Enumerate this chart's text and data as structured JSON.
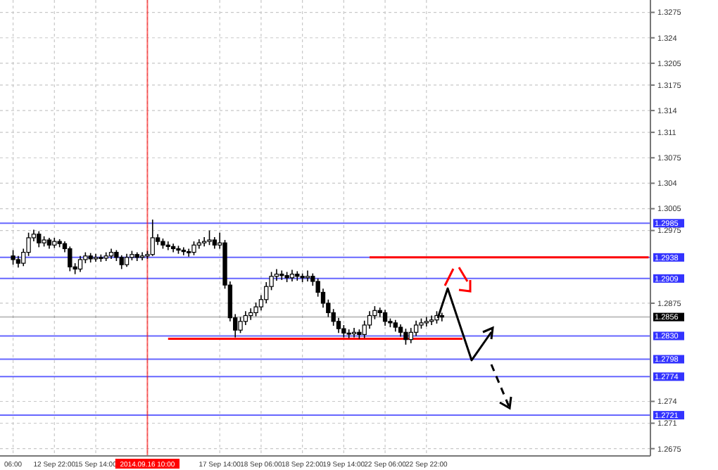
{
  "chart_data": {
    "type": "candlestick",
    "categories": [
      "06:00",
      null,
      null,
      null,
      null,
      null,
      null,
      null,
      "12 Sep 22:00",
      null,
      null,
      null,
      null,
      null,
      null,
      null,
      "15 Sep 14:00",
      null,
      null,
      null,
      null,
      null,
      null,
      null,
      null,
      null,
      "2014.09.16 10:00",
      null,
      null,
      null,
      null,
      null,
      null,
      null,
      null,
      null,
      null,
      null,
      null,
      null,
      "17 Sep 14:00",
      null,
      null,
      null,
      null,
      null,
      null,
      null,
      "18 Sep 06:00",
      null,
      null,
      null,
      null,
      null,
      null,
      null,
      "18 Sep 22:00",
      null,
      null,
      null,
      null,
      null,
      null,
      null,
      "19 Sep 14:00",
      null,
      null,
      null,
      null,
      null,
      null,
      null,
      "22 Sep 06:00",
      null,
      null,
      null,
      null,
      null,
      null,
      null,
      "22 Sep 22:00",
      null,
      null,
      null,
      null,
      null,
      null,
      null,
      null,
      null,
      null,
      null,
      null,
      null,
      null,
      null,
      null,
      null,
      null,
      null,
      null,
      null,
      null,
      null,
      null,
      null,
      null,
      null,
      null,
      null,
      null,
      null,
      null,
      null,
      null,
      null,
      null,
      null,
      null,
      null,
      null,
      null,
      null,
      null
    ],
    "ohlc": [
      [
        1.294,
        1.2948,
        1.2928,
        1.2935
      ],
      [
        1.2935,
        1.294,
        1.2924,
        1.293
      ],
      [
        1.293,
        1.295,
        1.2926,
        1.2945
      ],
      [
        1.2945,
        1.2972,
        1.294,
        1.2965
      ],
      [
        1.2965,
        1.2976,
        1.296,
        1.297
      ],
      [
        1.297,
        1.2974,
        1.2952,
        1.2958
      ],
      [
        1.2958,
        1.2967,
        1.2953,
        1.2962
      ],
      [
        1.2962,
        1.2965,
        1.295,
        1.2955
      ],
      [
        1.2955,
        1.2965,
        1.2951,
        1.296
      ],
      [
        1.296,
        1.2963,
        1.2952,
        1.2957
      ],
      [
        1.2957,
        1.296,
        1.2945,
        1.295
      ],
      [
        1.295,
        1.2953,
        1.2919,
        1.2925
      ],
      [
        1.2925,
        1.293,
        1.2915,
        1.2922
      ],
      [
        1.2922,
        1.294,
        1.2918,
        1.2935
      ],
      [
        1.2935,
        1.2945,
        1.293,
        1.294
      ],
      [
        1.294,
        1.2944,
        1.2931,
        1.2936
      ],
      [
        1.2936,
        1.2943,
        1.2932,
        1.2938
      ],
      [
        1.2938,
        1.2942,
        1.2932,
        1.2937
      ],
      [
        1.2937,
        1.2945,
        1.2933,
        1.294
      ],
      [
        1.294,
        1.295,
        1.2936,
        1.2945
      ],
      [
        1.2945,
        1.2948,
        1.2933,
        1.2938
      ],
      [
        1.2938,
        1.2941,
        1.2922,
        1.2928
      ],
      [
        1.2928,
        1.2943,
        1.2925,
        1.2938
      ],
      [
        1.2938,
        1.2947,
        1.2934,
        1.2942
      ],
      [
        1.2942,
        1.2945,
        1.2933,
        1.2938
      ],
      [
        1.2938,
        1.2945,
        1.2934,
        1.294
      ],
      [
        1.294,
        1.2947,
        1.2936,
        1.2942
      ],
      [
        1.2942,
        1.299,
        1.294,
        1.2965
      ],
      [
        1.2965,
        1.297,
        1.2955,
        1.296
      ],
      [
        1.296,
        1.2964,
        1.295,
        1.2955
      ],
      [
        1.2955,
        1.296,
        1.2948,
        1.2953
      ],
      [
        1.2953,
        1.2957,
        1.2945,
        1.295
      ],
      [
        1.295,
        1.2954,
        1.2943,
        1.2948
      ],
      [
        1.2948,
        1.2952,
        1.2941,
        1.2946
      ],
      [
        1.2946,
        1.295,
        1.2939,
        1.2945
      ],
      [
        1.2945,
        1.296,
        1.2941,
        1.2955
      ],
      [
        1.2955,
        1.2963,
        1.295,
        1.2958
      ],
      [
        1.2958,
        1.2966,
        1.2953,
        1.296
      ],
      [
        1.296,
        1.2975,
        1.2955,
        1.2962
      ],
      [
        1.2962,
        1.2966,
        1.295,
        1.2955
      ],
      [
        1.2955,
        1.2972,
        1.295,
        1.2958
      ],
      [
        1.2958,
        1.2962,
        1.2895,
        1.29
      ],
      [
        1.29,
        1.2905,
        1.285,
        1.2855
      ],
      [
        1.2855,
        1.286,
        1.2828,
        1.2838
      ],
      [
        1.2838,
        1.2856,
        1.2834,
        1.285
      ],
      [
        1.285,
        1.2864,
        1.2845,
        1.2858
      ],
      [
        1.2858,
        1.2868,
        1.2852,
        1.2862
      ],
      [
        1.2862,
        1.2876,
        1.2857,
        1.287
      ],
      [
        1.287,
        1.2886,
        1.2865,
        1.288
      ],
      [
        1.288,
        1.2904,
        1.2875,
        1.2898
      ],
      [
        1.2898,
        1.2918,
        1.2893,
        1.2912
      ],
      [
        1.2912,
        1.2922,
        1.2906,
        1.2915
      ],
      [
        1.2915,
        1.292,
        1.2907,
        1.2913
      ],
      [
        1.2913,
        1.2918,
        1.2904,
        1.291
      ],
      [
        1.291,
        1.2921,
        1.2905,
        1.2915
      ],
      [
        1.2915,
        1.2919,
        1.2906,
        1.2912
      ],
      [
        1.2912,
        1.2916,
        1.2904,
        1.291
      ],
      [
        1.291,
        1.292,
        1.2905,
        1.2912
      ],
      [
        1.2912,
        1.2916,
        1.2899,
        1.2905
      ],
      [
        1.2905,
        1.2909,
        1.2884,
        1.289
      ],
      [
        1.289,
        1.2895,
        1.2869,
        1.2875
      ],
      [
        1.2875,
        1.288,
        1.2856,
        1.2862
      ],
      [
        1.2862,
        1.2867,
        1.2844,
        1.285
      ],
      [
        1.285,
        1.2855,
        1.2834,
        1.284
      ],
      [
        1.284,
        1.2845,
        1.2828,
        1.2834
      ],
      [
        1.2834,
        1.2839,
        1.2827,
        1.2833
      ],
      [
        1.2833,
        1.2841,
        1.2828,
        1.2835
      ],
      [
        1.2835,
        1.2839,
        1.2826,
        1.2832
      ],
      [
        1.2832,
        1.2851,
        1.2827,
        1.2845
      ],
      [
        1.2845,
        1.2864,
        1.284,
        1.2858
      ],
      [
        1.2858,
        1.2871,
        1.2853,
        1.2865
      ],
      [
        1.2865,
        1.2869,
        1.2856,
        1.2862
      ],
      [
        1.2862,
        1.2866,
        1.2844,
        1.285
      ],
      [
        1.285,
        1.2854,
        1.2842,
        1.2848
      ],
      [
        1.2848,
        1.2852,
        1.2836,
        1.2842
      ],
      [
        1.2842,
        1.2846,
        1.2829,
        1.2835
      ],
      [
        1.2835,
        1.284,
        1.2818,
        1.2825
      ],
      [
        1.2825,
        1.2841,
        1.282,
        1.2835
      ],
      [
        1.2835,
        1.2851,
        1.283,
        1.2845
      ],
      [
        1.2845,
        1.2854,
        1.284,
        1.2848
      ],
      [
        1.2848,
        1.2856,
        1.2843,
        1.285
      ],
      [
        1.285,
        1.2858,
        1.2845,
        1.2852
      ],
      [
        1.2852,
        1.2864,
        1.2847,
        1.2858
      ],
      [
        1.2858,
        1.2862,
        1.285,
        1.2856
      ],
      null,
      null,
      null,
      null,
      null,
      null,
      null,
      null,
      null,
      null,
      null,
      null,
      null,
      null,
      null,
      null,
      null,
      null,
      null,
      null,
      null,
      null,
      null,
      null,
      null,
      null,
      null,
      null,
      null,
      null,
      null,
      null,
      null,
      null,
      null,
      null,
      null,
      null,
      null,
      null
    ],
    "series": [
      {
        "type": "line",
        "color": "#ff0000",
        "values": [
          null,
          null,
          null,
          null,
          null,
          null,
          null,
          null,
          null,
          null,
          null,
          null,
          null,
          null,
          null,
          null,
          null,
          null,
          null,
          null,
          null,
          null,
          null,
          null,
          null,
          null,
          null,
          null,
          null,
          null,
          1.2826,
          1.2826,
          1.2826,
          1.2826,
          1.2826,
          1.2826,
          1.2826,
          1.2826,
          1.2826,
          1.2826,
          1.2826,
          1.2826,
          1.2826,
          1.2826,
          1.2826,
          1.2826,
          1.2826,
          1.2826,
          1.2826,
          1.2826,
          1.2826,
          1.2826,
          1.2826,
          1.2826,
          1.2826,
          1.2826,
          1.2826,
          1.2826,
          1.2826,
          1.2826,
          1.2826,
          1.2826,
          1.2826,
          1.2826,
          1.2826,
          1.2826,
          1.2826,
          1.2826,
          1.2826,
          1.2826,
          1.2826,
          1.2826,
          1.2826,
          1.2826,
          1.2826,
          1.2826,
          1.2826,
          1.2826,
          1.2826,
          1.2826,
          1.2826,
          1.2826,
          1.2826,
          1.2826,
          1.2826,
          1.2826,
          1.2826,
          1.2826,
          null,
          null,
          null,
          null,
          null,
          null,
          null,
          null,
          null,
          null,
          null,
          null,
          null,
          null,
          null,
          null,
          null,
          null,
          null,
          null,
          null,
          null,
          null,
          null,
          null,
          null,
          null,
          null,
          null,
          null,
          null,
          null,
          null,
          null,
          null,
          null
        ]
      },
      {
        "type": "line",
        "color": "#ff0000",
        "values": [
          null,
          null,
          null,
          null,
          null,
          null,
          null,
          null,
          null,
          null,
          null,
          null,
          null,
          null,
          null,
          null,
          null,
          null,
          null,
          null,
          null,
          null,
          null,
          null,
          null,
          null,
          null,
          null,
          null,
          null,
          null,
          null,
          null,
          null,
          null,
          null,
          null,
          null,
          null,
          null,
          null,
          null,
          null,
          null,
          null,
          null,
          null,
          null,
          null,
          null,
          null,
          null,
          null,
          null,
          null,
          null,
          null,
          null,
          null,
          null,
          null,
          null,
          null,
          null,
          null,
          null,
          null,
          null,
          null,
          1.2938,
          1.2938,
          1.2938,
          1.2938,
          1.2938,
          1.2938,
          1.2938,
          1.2938,
          1.2938,
          1.2938,
          1.2938,
          1.2938,
          1.2938,
          1.2938,
          1.2938,
          1.2938,
          1.2938,
          1.2938,
          1.2938,
          1.2938,
          1.2938,
          1.2938,
          1.2938,
          1.2938,
          1.2938,
          1.2938,
          1.2938,
          1.2938,
          1.2938,
          1.2938,
          1.2938,
          1.2938,
          1.2938,
          1.2938,
          1.2938,
          1.2938,
          1.2938,
          1.2938,
          1.2938,
          1.2938,
          1.2938,
          1.2938,
          1.2938,
          1.2938,
          1.2938,
          1.2938,
          1.2938,
          1.2938,
          1.2938,
          1.2938,
          1.2938,
          1.2938,
          1.2938,
          1.2938,
          1.2938
        ]
      }
    ],
    "ylim": [
      1.2665,
      1.3292
    ],
    "yticks": [
      1.3275,
      1.324,
      1.3205,
      1.3175,
      1.314,
      1.311,
      1.3075,
      1.304,
      1.3005,
      1.2975,
      1.2875,
      1.274,
      1.271,
      1.2675
    ],
    "grid": true,
    "ref_lines": [
      {
        "axis": "y",
        "value": 1.2985,
        "label": "1.2985",
        "color": "#0000ff"
      },
      {
        "axis": "y",
        "value": 1.2938,
        "label": "1.2938",
        "color": "#0000ff"
      },
      {
        "axis": "y",
        "value": 1.2909,
        "label": "1.2909",
        "color": "#0000ff"
      },
      {
        "axis": "y",
        "value": 1.2856,
        "label": "1.2856",
        "color": "#000000"
      },
      {
        "axis": "y",
        "value": 1.283,
        "label": "1.2830",
        "color": "#0000ff"
      },
      {
        "axis": "y",
        "value": 1.2798,
        "label": "1.2798",
        "color": "#0000ff"
      },
      {
        "axis": "y",
        "value": 1.2774,
        "label": "1.2774",
        "color": "#0000ff"
      },
      {
        "axis": "y",
        "value": 1.2721,
        "label": "1.2721",
        "color": "#0000ff"
      },
      {
        "axis": "x",
        "value": "2014.09.16 10:00",
        "color": "#ff0000"
      }
    ]
  }
}
